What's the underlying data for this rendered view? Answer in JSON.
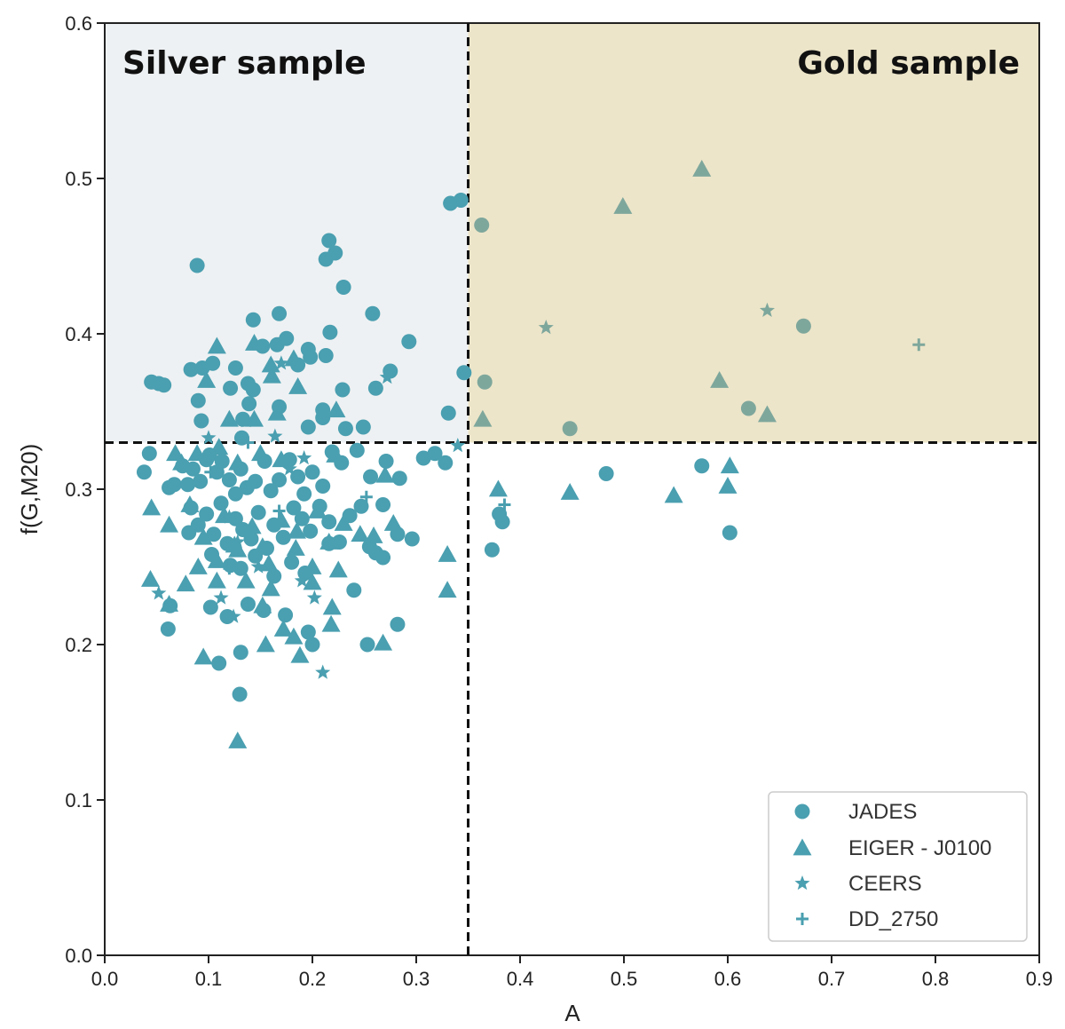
{
  "chart_data": {
    "type": "scatter",
    "title": "",
    "xlabel": "A",
    "ylabel": "f(G,M20)",
    "xlim": [
      0.0,
      0.9
    ],
    "ylim": [
      0.0,
      0.6
    ],
    "x_ticks": [
      "0.0",
      "0.1",
      "0.2",
      "0.3",
      "0.4",
      "0.5",
      "0.6",
      "0.7",
      "0.8",
      "0.9"
    ],
    "y_ticks": [
      "0.0",
      "0.1",
      "0.2",
      "0.3",
      "0.4",
      "0.5",
      "0.6"
    ],
    "grid": false,
    "thresholds": {
      "A": 0.35,
      "fGM20": 0.33
    },
    "regions": [
      {
        "name": "silver",
        "label": "Silver sample",
        "x_range": [
          0.0,
          0.35
        ],
        "y_range": [
          0.33,
          0.6
        ],
        "color": "#eef1f3"
      },
      {
        "name": "gold",
        "label": "Gold sample",
        "x_range": [
          0.35,
          0.9
        ],
        "y_range": [
          0.33,
          0.6
        ],
        "color": "#ede5c9"
      }
    ],
    "legend_position": "bottom-right",
    "marker_color": "#4a9fb0",
    "gold_marker_color": "#7ea79c",
    "series": [
      {
        "name": "JADES",
        "marker": "circle",
        "points": [
          [
            0.089,
            0.444
          ],
          [
            0.216,
            0.46
          ],
          [
            0.222,
            0.452
          ],
          [
            0.213,
            0.448
          ],
          [
            0.23,
            0.43
          ],
          [
            0.333,
            0.484
          ],
          [
            0.343,
            0.486
          ],
          [
            0.363,
            0.47
          ],
          [
            0.258,
            0.413
          ],
          [
            0.168,
            0.413
          ],
          [
            0.143,
            0.409
          ],
          [
            0.217,
            0.401
          ],
          [
            0.293,
            0.395
          ],
          [
            0.175,
            0.397
          ],
          [
            0.166,
            0.393
          ],
          [
            0.152,
            0.392
          ],
          [
            0.196,
            0.39
          ],
          [
            0.213,
            0.386
          ],
          [
            0.198,
            0.385
          ],
          [
            0.186,
            0.38
          ],
          [
            0.126,
            0.378
          ],
          [
            0.083,
            0.377
          ],
          [
            0.094,
            0.378
          ],
          [
            0.104,
            0.381
          ],
          [
            0.275,
            0.376
          ],
          [
            0.346,
            0.375
          ],
          [
            0.045,
            0.369
          ],
          [
            0.052,
            0.368
          ],
          [
            0.057,
            0.367
          ],
          [
            0.121,
            0.365
          ],
          [
            0.138,
            0.368
          ],
          [
            0.143,
            0.364
          ],
          [
            0.229,
            0.364
          ],
          [
            0.261,
            0.365
          ],
          [
            0.366,
            0.369
          ],
          [
            0.09,
            0.357
          ],
          [
            0.139,
            0.355
          ],
          [
            0.168,
            0.353
          ],
          [
            0.21,
            0.351
          ],
          [
            0.21,
            0.346
          ],
          [
            0.331,
            0.349
          ],
          [
            0.093,
            0.344
          ],
          [
            0.133,
            0.345
          ],
          [
            0.196,
            0.34
          ],
          [
            0.232,
            0.339
          ],
          [
            0.249,
            0.34
          ],
          [
            0.132,
            0.333
          ],
          [
            0.448,
            0.339
          ],
          [
            0.62,
            0.352
          ],
          [
            0.673,
            0.405
          ],
          [
            0.043,
            0.323
          ],
          [
            0.038,
            0.311
          ],
          [
            0.062,
            0.301
          ],
          [
            0.067,
            0.303
          ],
          [
            0.075,
            0.315
          ],
          [
            0.08,
            0.303
          ],
          [
            0.085,
            0.313
          ],
          [
            0.092,
            0.305
          ],
          [
            0.098,
            0.319
          ],
          [
            0.101,
            0.322
          ],
          [
            0.108,
            0.311
          ],
          [
            0.113,
            0.318
          ],
          [
            0.12,
            0.306
          ],
          [
            0.126,
            0.297
          ],
          [
            0.131,
            0.313
          ],
          [
            0.137,
            0.301
          ],
          [
            0.145,
            0.305
          ],
          [
            0.154,
            0.318
          ],
          [
            0.16,
            0.299
          ],
          [
            0.168,
            0.306
          ],
          [
            0.178,
            0.319
          ],
          [
            0.186,
            0.308
          ],
          [
            0.192,
            0.297
          ],
          [
            0.2,
            0.311
          ],
          [
            0.21,
            0.302
          ],
          [
            0.219,
            0.324
          ],
          [
            0.228,
            0.317
          ],
          [
            0.243,
            0.325
          ],
          [
            0.256,
            0.308
          ],
          [
            0.271,
            0.318
          ],
          [
            0.284,
            0.307
          ],
          [
            0.307,
            0.32
          ],
          [
            0.318,
            0.323
          ],
          [
            0.328,
            0.317
          ],
          [
            0.083,
            0.288
          ],
          [
            0.09,
            0.277
          ],
          [
            0.098,
            0.284
          ],
          [
            0.105,
            0.271
          ],
          [
            0.112,
            0.291
          ],
          [
            0.118,
            0.265
          ],
          [
            0.126,
            0.281
          ],
          [
            0.133,
            0.274
          ],
          [
            0.141,
            0.268
          ],
          [
            0.148,
            0.285
          ],
          [
            0.156,
            0.262
          ],
          [
            0.163,
            0.277
          ],
          [
            0.172,
            0.269
          ],
          [
            0.182,
            0.288
          ],
          [
            0.19,
            0.281
          ],
          [
            0.198,
            0.273
          ],
          [
            0.207,
            0.289
          ],
          [
            0.216,
            0.279
          ],
          [
            0.226,
            0.266
          ],
          [
            0.236,
            0.283
          ],
          [
            0.247,
            0.289
          ],
          [
            0.255,
            0.263
          ],
          [
            0.261,
            0.259
          ],
          [
            0.268,
            0.29
          ],
          [
            0.282,
            0.271
          ],
          [
            0.296,
            0.268
          ],
          [
            0.38,
            0.284
          ],
          [
            0.383,
            0.279
          ],
          [
            0.373,
            0.261
          ],
          [
            0.483,
            0.31
          ],
          [
            0.575,
            0.315
          ],
          [
            0.602,
            0.272
          ],
          [
            0.081,
            0.272
          ],
          [
            0.103,
            0.258
          ],
          [
            0.121,
            0.251
          ],
          [
            0.131,
            0.249
          ],
          [
            0.145,
            0.257
          ],
          [
            0.163,
            0.244
          ],
          [
            0.18,
            0.253
          ],
          [
            0.193,
            0.246
          ],
          [
            0.216,
            0.265
          ],
          [
            0.24,
            0.235
          ],
          [
            0.268,
            0.256
          ],
          [
            0.063,
            0.225
          ],
          [
            0.102,
            0.224
          ],
          [
            0.118,
            0.218
          ],
          [
            0.138,
            0.226
          ],
          [
            0.153,
            0.222
          ],
          [
            0.174,
            0.219
          ],
          [
            0.196,
            0.208
          ],
          [
            0.2,
            0.2
          ],
          [
            0.061,
            0.21
          ],
          [
            0.11,
            0.188
          ],
          [
            0.131,
            0.195
          ],
          [
            0.253,
            0.2
          ],
          [
            0.282,
            0.213
          ],
          [
            0.13,
            0.168
          ]
        ]
      },
      {
        "name": "EIGER - J0100",
        "marker": "triangle",
        "points": [
          [
            0.108,
            0.392
          ],
          [
            0.144,
            0.394
          ],
          [
            0.16,
            0.38
          ],
          [
            0.182,
            0.384
          ],
          [
            0.098,
            0.37
          ],
          [
            0.161,
            0.373
          ],
          [
            0.186,
            0.366
          ],
          [
            0.12,
            0.345
          ],
          [
            0.144,
            0.345
          ],
          [
            0.166,
            0.349
          ],
          [
            0.223,
            0.351
          ],
          [
            0.364,
            0.345
          ],
          [
            0.499,
            0.482
          ],
          [
            0.575,
            0.506
          ],
          [
            0.592,
            0.37
          ],
          [
            0.638,
            0.348
          ],
          [
            0.068,
            0.323
          ],
          [
            0.074,
            0.317
          ],
          [
            0.089,
            0.323
          ],
          [
            0.11,
            0.327
          ],
          [
            0.128,
            0.317
          ],
          [
            0.15,
            0.323
          ],
          [
            0.17,
            0.319
          ],
          [
            0.222,
            0.322
          ],
          [
            0.045,
            0.288
          ],
          [
            0.062,
            0.277
          ],
          [
            0.082,
            0.29
          ],
          [
            0.095,
            0.269
          ],
          [
            0.115,
            0.283
          ],
          [
            0.125,
            0.264
          ],
          [
            0.142,
            0.276
          ],
          [
            0.152,
            0.263
          ],
          [
            0.17,
            0.28
          ],
          [
            0.185,
            0.273
          ],
          [
            0.205,
            0.286
          ],
          [
            0.23,
            0.278
          ],
          [
            0.246,
            0.271
          ],
          [
            0.259,
            0.27
          ],
          [
            0.27,
            0.309
          ],
          [
            0.278,
            0.278
          ],
          [
            0.33,
            0.258
          ],
          [
            0.379,
            0.3
          ],
          [
            0.448,
            0.298
          ],
          [
            0.548,
            0.296
          ],
          [
            0.6,
            0.302
          ],
          [
            0.602,
            0.315
          ],
          [
            0.09,
            0.25
          ],
          [
            0.108,
            0.254
          ],
          [
            0.128,
            0.261
          ],
          [
            0.158,
            0.252
          ],
          [
            0.184,
            0.262
          ],
          [
            0.2,
            0.25
          ],
          [
            0.216,
            0.266
          ],
          [
            0.225,
            0.248
          ],
          [
            0.044,
            0.242
          ],
          [
            0.062,
            0.226
          ],
          [
            0.078,
            0.239
          ],
          [
            0.108,
            0.241
          ],
          [
            0.136,
            0.241
          ],
          [
            0.152,
            0.225
          ],
          [
            0.16,
            0.236
          ],
          [
            0.2,
            0.24
          ],
          [
            0.219,
            0.224
          ],
          [
            0.218,
            0.213
          ],
          [
            0.172,
            0.21
          ],
          [
            0.155,
            0.2
          ],
          [
            0.182,
            0.205
          ],
          [
            0.188,
            0.193
          ],
          [
            0.095,
            0.192
          ],
          [
            0.268,
            0.201
          ],
          [
            0.33,
            0.235
          ],
          [
            0.128,
            0.138
          ]
        ]
      },
      {
        "name": "CEERS",
        "marker": "star",
        "points": [
          [
            0.425,
            0.404
          ],
          [
            0.638,
            0.415
          ],
          [
            0.17,
            0.381
          ],
          [
            0.272,
            0.372
          ],
          [
            0.136,
            0.344
          ],
          [
            0.164,
            0.334
          ],
          [
            0.34,
            0.328
          ],
          [
            0.1,
            0.333
          ],
          [
            0.178,
            0.313
          ],
          [
            0.192,
            0.32
          ],
          [
            0.12,
            0.282
          ],
          [
            0.128,
            0.266
          ],
          [
            0.148,
            0.25
          ],
          [
            0.19,
            0.241
          ],
          [
            0.052,
            0.233
          ],
          [
            0.138,
            0.226
          ],
          [
            0.112,
            0.23
          ],
          [
            0.124,
            0.218
          ],
          [
            0.202,
            0.23
          ],
          [
            0.21,
            0.182
          ]
        ]
      },
      {
        "name": "DD_2750",
        "marker": "plus",
        "points": [
          [
            0.784,
            0.393
          ],
          [
            0.252,
            0.295
          ],
          [
            0.385,
            0.29
          ],
          [
            0.12,
            0.249
          ],
          [
            0.138,
            0.33
          ],
          [
            0.102,
            0.311
          ],
          [
            0.168,
            0.286
          ]
        ]
      }
    ]
  }
}
